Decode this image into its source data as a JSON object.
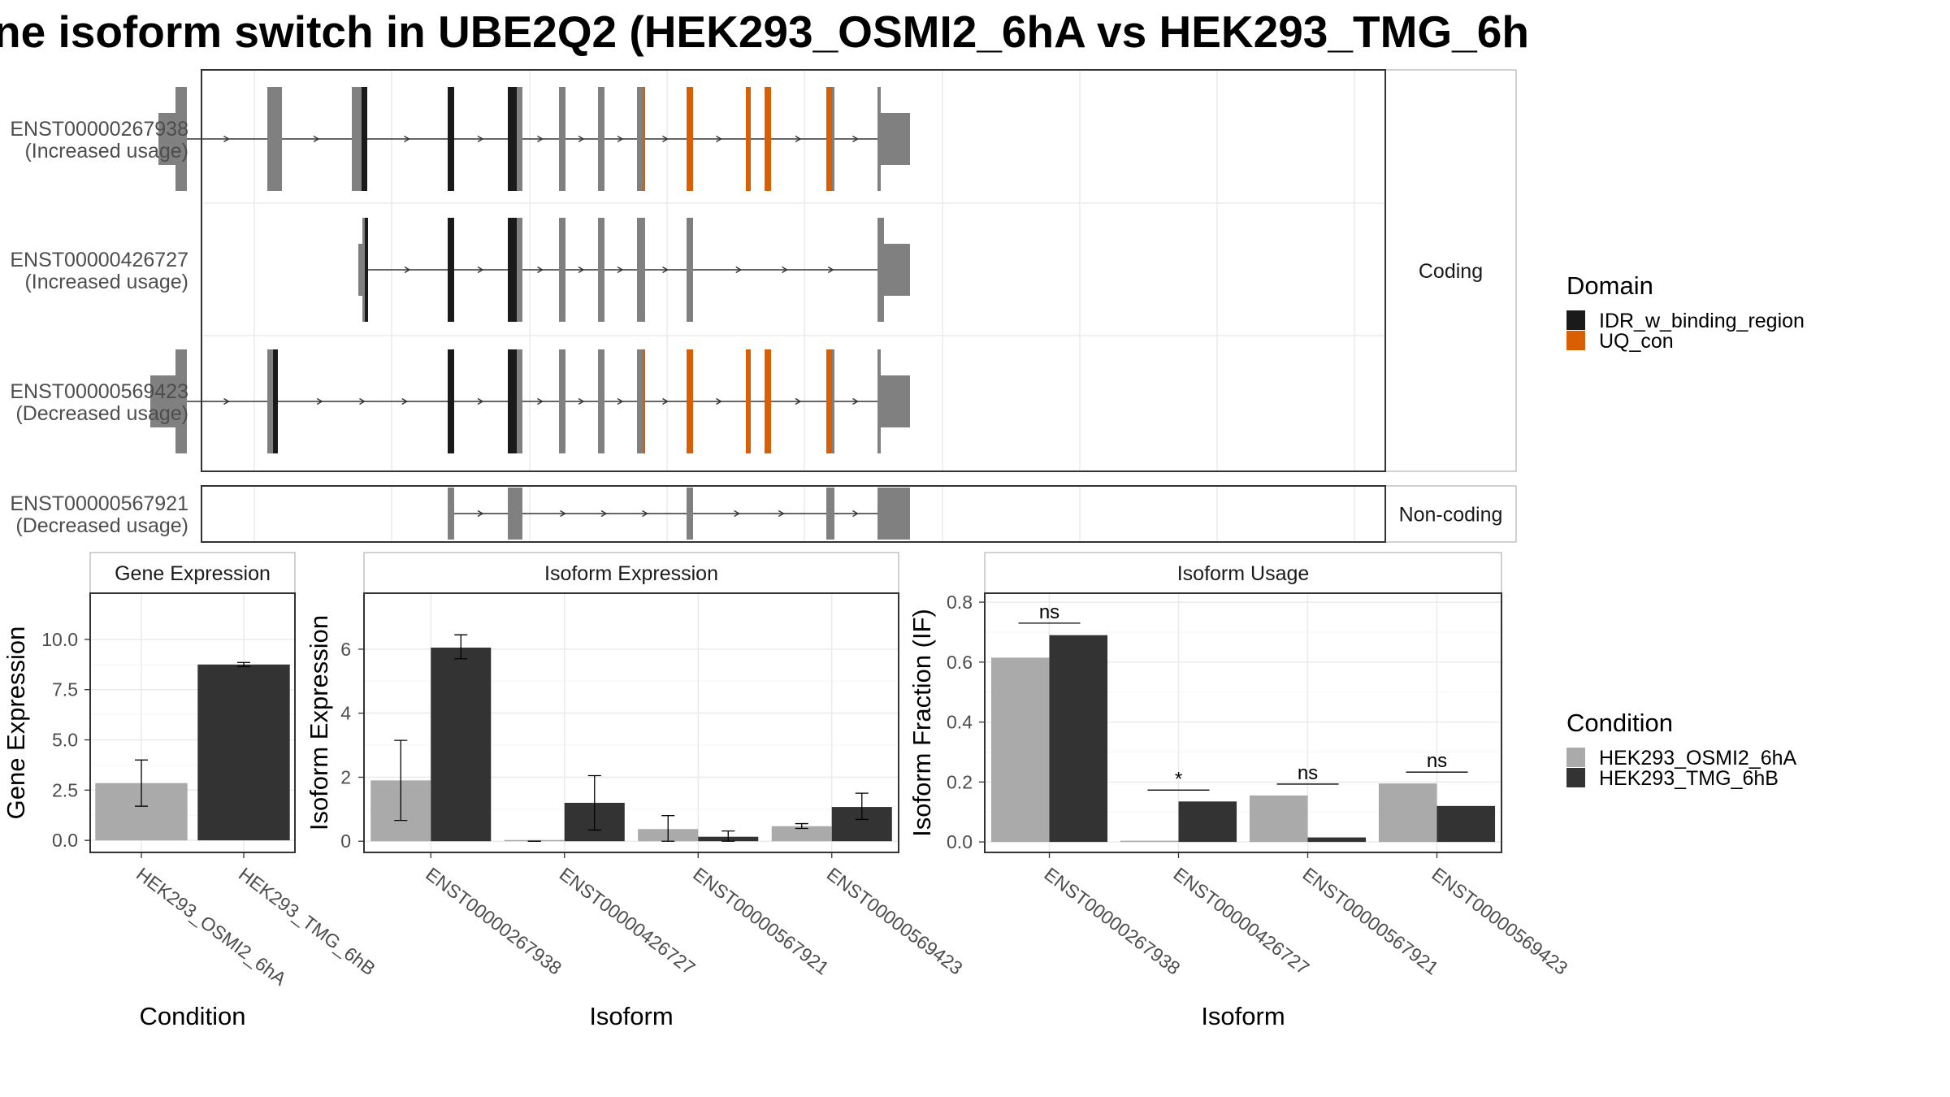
{
  "chart_data": [
    {
      "type": "gene-structure",
      "title": "ne isoform switch in UBE2Q2 (HEK293_OSMI2_6hA vs HEK293_TMG_6h",
      "domain_legend": {
        "title": "Domain",
        "entries": [
          {
            "name": "IDR_w_binding_region",
            "color": "#1a1a1a"
          },
          {
            "name": "UQ_con",
            "color": "#d95f02"
          }
        ]
      },
      "panels": [
        {
          "label": "Coding",
          "rows": [
            0,
            1,
            2
          ]
        },
        {
          "label": "Non-coding",
          "rows": [
            3
          ]
        }
      ],
      "isoforms": [
        {
          "id": "ENST00000267938",
          "usage": "(Increased usage)",
          "coding": true,
          "exons": [
            {
              "s": 195,
              "e": 216,
              "kind": "utr"
            },
            {
              "s": 216,
              "e": 230,
              "kind": "cds"
            },
            {
              "s": 329,
              "e": 347,
              "kind": "cds"
            },
            {
              "s": 433,
              "e": 445,
              "kind": "cds"
            },
            {
              "s": 445,
              "e": 452,
              "kind": "cds",
              "domain": "IDR_w_binding_region"
            },
            {
              "s": 551,
              "e": 559,
              "kind": "cds",
              "domain": "IDR_w_binding_region"
            },
            {
              "s": 625,
              "e": 636,
              "kind": "cds",
              "domain": "IDR_w_binding_region"
            },
            {
              "s": 636,
              "e": 643,
              "kind": "cds"
            },
            {
              "s": 688,
              "e": 696,
              "kind": "cds"
            },
            {
              "s": 736,
              "e": 744,
              "kind": "cds"
            },
            {
              "s": 784,
              "e": 791,
              "kind": "cds"
            },
            {
              "s": 791,
              "e": 794,
              "kind": "cds",
              "domain": "UQ_con"
            },
            {
              "s": 845,
              "e": 853,
              "kind": "cds",
              "domain": "UQ_con"
            },
            {
              "s": 918,
              "e": 924,
              "kind": "cds",
              "domain": "UQ_con"
            },
            {
              "s": 941,
              "e": 949,
              "kind": "cds",
              "domain": "UQ_con"
            },
            {
              "s": 1017,
              "e": 1024,
              "kind": "cds",
              "domain": "UQ_con"
            },
            {
              "s": 1024,
              "e": 1027,
              "kind": "cds"
            },
            {
              "s": 1080,
              "e": 1084,
              "kind": "cds"
            },
            {
              "s": 1084,
              "e": 1120,
              "kind": "utr"
            }
          ]
        },
        {
          "id": "ENST00000426727",
          "usage": "(Increased usage)",
          "coding": true,
          "exons": [
            {
              "s": 441,
              "e": 446,
              "kind": "utr"
            },
            {
              "s": 446,
              "e": 449,
              "kind": "cds"
            },
            {
              "s": 449,
              "e": 453,
              "kind": "cds",
              "domain": "IDR_w_binding_region"
            },
            {
              "s": 551,
              "e": 559,
              "kind": "cds",
              "domain": "IDR_w_binding_region"
            },
            {
              "s": 625,
              "e": 636,
              "kind": "cds",
              "domain": "IDR_w_binding_region"
            },
            {
              "s": 636,
              "e": 643,
              "kind": "cds"
            },
            {
              "s": 688,
              "e": 696,
              "kind": "cds"
            },
            {
              "s": 736,
              "e": 744,
              "kind": "cds"
            },
            {
              "s": 784,
              "e": 794,
              "kind": "cds"
            },
            {
              "s": 845,
              "e": 853,
              "kind": "cds"
            },
            {
              "s": 1080,
              "e": 1088,
              "kind": "cds"
            },
            {
              "s": 1088,
              "e": 1120,
              "kind": "utr"
            }
          ]
        },
        {
          "id": "ENST00000569423",
          "usage": "(Decreased usage)",
          "coding": true,
          "exons": [
            {
              "s": 185,
              "e": 216,
              "kind": "utr"
            },
            {
              "s": 216,
              "e": 230,
              "kind": "cds"
            },
            {
              "s": 329,
              "e": 336,
              "kind": "cds"
            },
            {
              "s": 336,
              "e": 342,
              "kind": "cds",
              "domain": "IDR_w_binding_region"
            },
            {
              "s": 551,
              "e": 559,
              "kind": "cds",
              "domain": "IDR_w_binding_region"
            },
            {
              "s": 625,
              "e": 636,
              "kind": "cds",
              "domain": "IDR_w_binding_region"
            },
            {
              "s": 636,
              "e": 643,
              "kind": "cds"
            },
            {
              "s": 688,
              "e": 696,
              "kind": "cds"
            },
            {
              "s": 736,
              "e": 744,
              "kind": "cds"
            },
            {
              "s": 784,
              "e": 791,
              "kind": "cds"
            },
            {
              "s": 791,
              "e": 794,
              "kind": "cds",
              "domain": "UQ_con"
            },
            {
              "s": 845,
              "e": 853,
              "kind": "cds",
              "domain": "UQ_con"
            },
            {
              "s": 918,
              "e": 924,
              "kind": "cds",
              "domain": "UQ_con"
            },
            {
              "s": 941,
              "e": 949,
              "kind": "cds",
              "domain": "UQ_con"
            },
            {
              "s": 1017,
              "e": 1024,
              "kind": "cds",
              "domain": "UQ_con"
            },
            {
              "s": 1024,
              "e": 1027,
              "kind": "cds"
            },
            {
              "s": 1080,
              "e": 1084,
              "kind": "cds"
            },
            {
              "s": 1084,
              "e": 1120,
              "kind": "utr"
            }
          ]
        },
        {
          "id": "ENST00000567921",
          "usage": "(Decreased usage)",
          "coding": false,
          "exons": [
            {
              "s": 551,
              "e": 559,
              "kind": "nc"
            },
            {
              "s": 625,
              "e": 643,
              "kind": "nc"
            },
            {
              "s": 845,
              "e": 853,
              "kind": "nc"
            },
            {
              "s": 1017,
              "e": 1027,
              "kind": "nc"
            },
            {
              "s": 1080,
              "e": 1120,
              "kind": "nc"
            }
          ]
        }
      ]
    },
    {
      "type": "bar",
      "title": "Gene Expression",
      "xlabel": "Condition",
      "ylabel": "Gene Expression",
      "ylim": [
        -0.6,
        12.3
      ],
      "yticks": [
        0.0,
        2.5,
        5.0,
        7.5,
        10.0
      ],
      "ytick_labels": [
        "0.0",
        "2.5",
        "5.0",
        "7.5",
        "10.0"
      ],
      "categories": [
        "HEK293_OSMI2_6hA",
        "HEK293_TMG_6hB"
      ],
      "values": [
        2.85,
        8.75
      ],
      "errors": [
        [
          1.7,
          4.0
        ],
        [
          8.65,
          8.85
        ]
      ],
      "colors": [
        "#aaaaaa",
        "#333333"
      ]
    },
    {
      "type": "bar",
      "title": "Isoform Expression",
      "xlabel": "Isoform",
      "ylabel": "Isoform Expression",
      "ylim": [
        -0.35,
        7.75
      ],
      "yticks": [
        0,
        2,
        4,
        6
      ],
      "ytick_labels": [
        "0",
        "2",
        "4",
        "6"
      ],
      "categories": [
        "ENST00000267938",
        "ENST00000426727",
        "ENST00000567921",
        "ENST00000569423"
      ],
      "series": [
        {
          "name": "HEK293_OSMI2_6hA",
          "values": [
            1.9,
            0.0,
            0.38,
            0.47
          ],
          "errors": [
            [
              0.65,
              3.15
            ],
            [
              0.0,
              0.0
            ],
            [
              0.0,
              0.8
            ],
            [
              0.4,
              0.55
            ]
          ]
        },
        {
          "name": "HEK293_TMG_6hB",
          "values": [
            6.05,
            1.2,
            0.14,
            1.07
          ],
          "errors": [
            [
              5.7,
              6.45
            ],
            [
              0.35,
              2.05
            ],
            [
              0.0,
              0.32
            ],
            [
              0.68,
              1.5
            ]
          ]
        }
      ]
    },
    {
      "type": "bar",
      "title": "Isoform Usage",
      "xlabel": "Isoform",
      "ylabel": "Isoform Fraction (IF)",
      "ylim": [
        -0.035,
        0.83
      ],
      "yticks": [
        0.0,
        0.2,
        0.4,
        0.6,
        0.8
      ],
      "ytick_labels": [
        "0.0",
        "0.2",
        "0.4",
        "0.6",
        "0.8"
      ],
      "categories": [
        "ENST00000267938",
        "ENST00000426727",
        "ENST00000567921",
        "ENST00000569423"
      ],
      "series": [
        {
          "name": "HEK293_OSMI2_6hA",
          "values": [
            0.615,
            0.0,
            0.155,
            0.195
          ]
        },
        {
          "name": "HEK293_TMG_6hB",
          "values": [
            0.69,
            0.135,
            0.015,
            0.12
          ]
        }
      ],
      "significance": [
        "ns",
        "*",
        "ns",
        "ns"
      ],
      "sig_line_y": [
        0.73,
        0.173,
        0.193,
        0.233
      ]
    }
  ],
  "condition_legend": {
    "title": "Condition",
    "entries": [
      {
        "name": "HEK293_OSMI2_6hA",
        "color": "#aaaaaa"
      },
      {
        "name": "HEK293_TMG_6hB",
        "color": "#333333"
      }
    ]
  },
  "colors": {
    "utr": "#808080",
    "cds": "#808080",
    "nc": "#808080",
    "cond_a": "#aaaaaa",
    "cond_b": "#333333",
    "grid": "#ebebeb",
    "panel_border": "#333333",
    "strip_border": "#b3b3b3"
  }
}
